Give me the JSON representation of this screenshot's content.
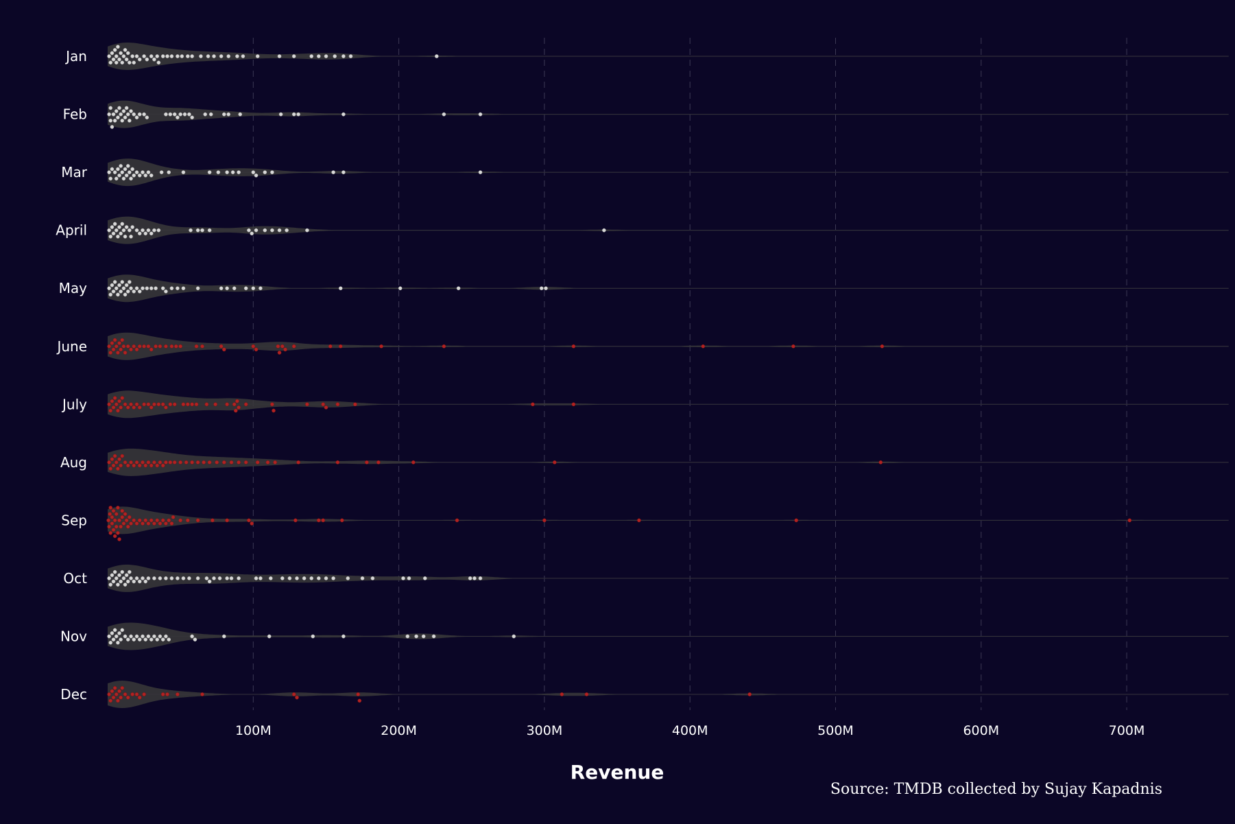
{
  "chart_data": {
    "type": "violin-beeswarm",
    "xlabel": "Revenue",
    "caption": "Source: TMDB collected by Sujay Kapadnis",
    "xlim": [
      0,
      770
    ],
    "x_unit": "M",
    "x_ticks": [
      100,
      200,
      300,
      400,
      500,
      600,
      700
    ],
    "x_tick_labels": [
      "100M",
      "200M",
      "300M",
      "400M",
      "500M",
      "600M",
      "700M"
    ],
    "grid": "vertical dashed",
    "colors": {
      "background": "#0b0626",
      "violin": "#3a3a3a",
      "point_default": "#d9d9d9",
      "point_highlight": "#b22222",
      "grid": "#3d3a55"
    },
    "categories": [
      "Jan",
      "Feb",
      "Mar",
      "April",
      "May",
      "June",
      "July",
      "Aug",
      "Sep",
      "Oct",
      "Nov",
      "Dec"
    ],
    "highlighted_categories": [
      "June",
      "July",
      "Aug",
      "Sep",
      "Dec"
    ],
    "series": [
      {
        "category": "Jan",
        "values": [
          1,
          2,
          3,
          4,
          5,
          6,
          6,
          7,
          8,
          9,
          10,
          11,
          12,
          13,
          14,
          15,
          17,
          18,
          20,
          22,
          25,
          27,
          30,
          32,
          34,
          35,
          38,
          41,
          44,
          48,
          51,
          55,
          58,
          64,
          69,
          73,
          78,
          83,
          89,
          93,
          103,
          118,
          128,
          140,
          145,
          150,
          156,
          162,
          167,
          226
        ]
      },
      {
        "category": "Feb",
        "values": [
          1,
          2,
          2,
          3,
          4,
          5,
          6,
          7,
          8,
          9,
          10,
          11,
          12,
          13,
          14,
          15,
          16,
          18,
          20,
          22,
          25,
          27,
          40,
          43,
          46,
          48,
          50,
          53,
          56,
          58,
          67,
          71,
          80,
          83,
          91,
          119,
          128,
          131,
          162,
          231,
          256
        ]
      },
      {
        "category": "Mar",
        "values": [
          1,
          2,
          3,
          5,
          6,
          7,
          8,
          9,
          10,
          11,
          12,
          13,
          14,
          15,
          16,
          17,
          18,
          20,
          22,
          24,
          26,
          28,
          30,
          37,
          42,
          52,
          70,
          76,
          82,
          86,
          90,
          100,
          102,
          108,
          113,
          155,
          162,
          256
        ]
      },
      {
        "category": "April",
        "values": [
          1,
          2,
          3,
          4,
          5,
          6,
          7,
          8,
          9,
          10,
          11,
          12,
          13,
          15,
          16,
          17,
          20,
          22,
          24,
          26,
          28,
          30,
          32,
          35,
          57,
          62,
          65,
          70,
          97,
          99,
          102,
          108,
          113,
          118,
          123,
          137,
          341
        ]
      },
      {
        "category": "May",
        "values": [
          1,
          2,
          3,
          4,
          5,
          6,
          7,
          8,
          9,
          10,
          11,
          12,
          13,
          14,
          15,
          16,
          18,
          20,
          22,
          24,
          27,
          30,
          33,
          38,
          40,
          44,
          48,
          52,
          62,
          78,
          82,
          87,
          95,
          100,
          105,
          160,
          201,
          241,
          298,
          301
        ]
      },
      {
        "category": "June",
        "values": [
          1,
          2,
          3,
          4,
          5,
          6,
          7,
          8,
          9,
          10,
          11,
          12,
          14,
          16,
          18,
          20,
          22,
          25,
          28,
          30,
          33,
          36,
          40,
          44,
          47,
          50,
          61,
          65,
          78,
          80,
          100,
          102,
          117,
          118,
          120,
          122,
          128,
          153,
          160,
          188,
          231,
          320,
          409,
          471,
          532
        ]
      },
      {
        "category": "July",
        "values": [
          1,
          2,
          3,
          4,
          5,
          6,
          7,
          8,
          9,
          10,
          12,
          14,
          16,
          18,
          20,
          22,
          25,
          28,
          30,
          32,
          35,
          38,
          40,
          43,
          46,
          52,
          55,
          58,
          61,
          68,
          74,
          82,
          87,
          88,
          89,
          90,
          95,
          113,
          114,
          137,
          148,
          150,
          158,
          170,
          292,
          320
        ]
      },
      {
        "category": "Aug",
        "values": [
          1,
          2,
          3,
          4,
          5,
          6,
          7,
          8,
          9,
          10,
          12,
          14,
          16,
          18,
          20,
          22,
          24,
          26,
          28,
          30,
          32,
          34,
          36,
          38,
          40,
          43,
          46,
          50,
          54,
          58,
          62,
          66,
          70,
          75,
          80,
          85,
          90,
          95,
          103,
          110,
          115,
          131,
          158,
          178,
          186,
          210,
          307,
          531
        ]
      },
      {
        "category": "Sep",
        "values": [
          0.5,
          1,
          1.5,
          2,
          2,
          3,
          3,
          4,
          4,
          5,
          5,
          6,
          6,
          7,
          7,
          8,
          8,
          9,
          10,
          10,
          11,
          12,
          13,
          14,
          15,
          16,
          18,
          20,
          22,
          24,
          26,
          28,
          30,
          32,
          34,
          36,
          38,
          40,
          42,
          44,
          45,
          50,
          55,
          62,
          72,
          82,
          97,
          99,
          129,
          145,
          148,
          161,
          240,
          300,
          365,
          473,
          702
        ]
      },
      {
        "category": "Oct",
        "values": [
          1,
          2,
          3,
          4,
          5,
          6,
          7,
          8,
          9,
          10,
          11,
          12,
          13,
          14,
          15,
          16,
          18,
          20,
          22,
          24,
          26,
          28,
          32,
          36,
          40,
          44,
          48,
          52,
          56,
          62,
          68,
          70,
          73,
          77,
          82,
          85,
          90,
          102,
          105,
          112,
          120,
          125,
          130,
          135,
          140,
          145,
          150,
          155,
          165,
          175,
          182,
          203,
          207,
          218,
          249,
          252,
          256
        ]
      },
      {
        "category": "Nov",
        "values": [
          1,
          2,
          3,
          4,
          5,
          6,
          7,
          8,
          9,
          10,
          12,
          14,
          16,
          18,
          20,
          22,
          24,
          26,
          28,
          30,
          32,
          34,
          36,
          38,
          40,
          42,
          58,
          60,
          80,
          111,
          141,
          162,
          206,
          212,
          217,
          224,
          279
        ]
      },
      {
        "category": "Dec",
        "values": [
          1,
          2,
          3,
          4,
          5,
          6,
          7,
          8,
          9,
          10,
          12,
          14,
          17,
          20,
          22,
          25,
          38,
          41,
          48,
          65,
          128,
          130,
          172,
          173,
          312,
          329,
          441
        ]
      }
    ]
  }
}
